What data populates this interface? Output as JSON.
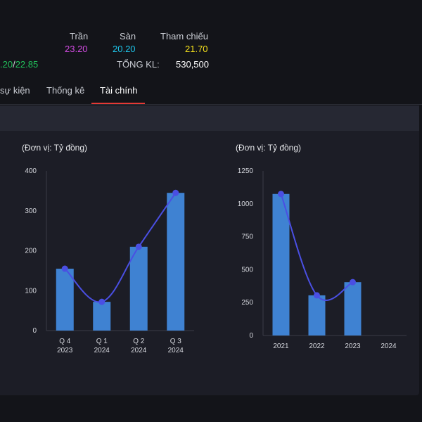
{
  "quote": {
    "ceiling_label": "Trần",
    "ceiling_value": "23.20",
    "floor_label": "Sàn",
    "floor_value": "20.20",
    "reference_label": "Tham chiếu",
    "reference_value": "21.70",
    "range_low": ".20",
    "range_sep": "/",
    "range_high": "22.85",
    "volume_label": "TỔNG KL:",
    "volume_value": "530,500"
  },
  "colors": {
    "ceiling": "#d14be0",
    "floor": "#1ec5ea",
    "reference": "#f5e11c",
    "range": "#21c05a",
    "bar": "#3f82d2",
    "line": "#4a4fe3"
  },
  "tabs": [
    {
      "label": "sự kiện"
    },
    {
      "label": "Thống kê"
    },
    {
      "label": "Tài chính"
    }
  ],
  "chart_data": [
    {
      "type": "bar",
      "unit_label": "(Đơn vị: Tỷ đồng)",
      "categories": [
        [
          "Q 4",
          "2023"
        ],
        [
          "Q 1",
          "2024"
        ],
        [
          "Q 2",
          "2024"
        ],
        [
          "Q 3",
          "2024"
        ]
      ],
      "series": [
        {
          "type": "bar",
          "values": [
            155,
            72,
            210,
            345
          ]
        },
        {
          "type": "line",
          "values": [
            155,
            72,
            210,
            345
          ]
        }
      ],
      "y_ticks": [
        0,
        100,
        200,
        300,
        400
      ],
      "ylim": [
        0,
        400
      ]
    },
    {
      "type": "bar",
      "unit_label": "(Đơn vị: Tỷ đồng)",
      "categories": [
        [
          "2021"
        ],
        [
          "2022"
        ],
        [
          "2023"
        ],
        [
          "2024"
        ]
      ],
      "series": [
        {
          "type": "bar",
          "values": [
            1075,
            305,
            405,
            null
          ]
        },
        {
          "type": "line",
          "values": [
            1075,
            305,
            405,
            null
          ]
        }
      ],
      "y_ticks": [
        0,
        250,
        500,
        750,
        1000,
        1250
      ],
      "ylim": [
        0,
        1250
      ]
    }
  ]
}
